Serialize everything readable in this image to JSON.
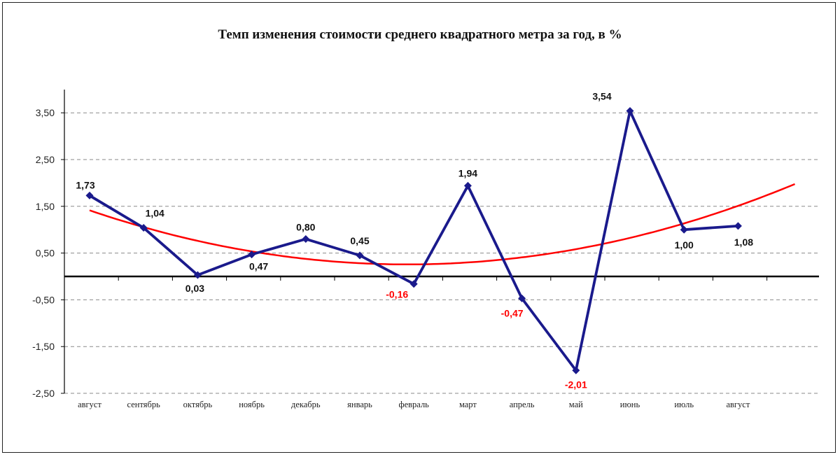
{
  "chart_data": {
    "type": "line",
    "title": "Темп изменения стоимости среднего квадратного метра за год, в %",
    "categories": [
      "август",
      "сентябрь",
      "октябрь",
      "ноябрь",
      "декабрь",
      "январь",
      "февраль",
      "март",
      "апрель",
      "май",
      "июнь",
      "июль",
      "август"
    ],
    "series": [
      {
        "values": [
          1.73,
          1.04,
          0.03,
          0.47,
          0.8,
          0.45,
          -0.16,
          1.94,
          -0.47,
          -2.01,
          3.54,
          1.0,
          1.08
        ],
        "labels": [
          "1,73",
          "1,04",
          "0,03",
          "0,47",
          "0,80",
          "0,45",
          "-0,16",
          "1,94",
          "-0,47",
          "-2,01",
          "3,54",
          "1,00",
          "1,08"
        ],
        "color": "#1a1a8c"
      },
      {
        "trendline": true,
        "type": "polynomial",
        "color": "#ff0000"
      }
    ],
    "negative_label_color": "#ff0000",
    "yticks": [
      "3,50",
      "2,50",
      "1,50",
      "0,50",
      "-0,50",
      "-1,50",
      "-2,50"
    ],
    "ytick_values": [
      3.5,
      2.5,
      1.5,
      0.5,
      -0.5,
      -1.5,
      -2.5
    ],
    "ylim": [
      -2.5,
      4.0
    ],
    "grid": "horizontal dashed",
    "legend": "none"
  }
}
